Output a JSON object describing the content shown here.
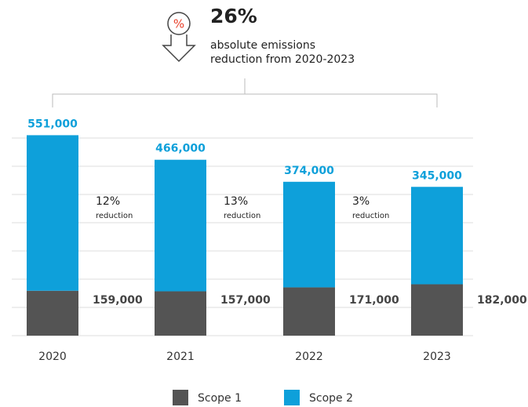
{
  "chart_data": {
    "type": "stacked_bar",
    "headline": "26%",
    "subtitle_lines": [
      "absolute emissions",
      "reduction from 2020-2023"
    ],
    "categories": [
      "2020",
      "2021",
      "2022",
      "2023"
    ],
    "series": [
      {
        "name": "Scope 1",
        "color": "#545454",
        "values": [
          159000,
          157000,
          171000,
          182000
        ],
        "value_labels": [
          "159,000",
          "157,000",
          "171,000",
          "182,000"
        ]
      },
      {
        "name": "Scope 2",
        "color": "#0ea0da",
        "values": [
          551000,
          466000,
          374000,
          345000
        ],
        "value_labels": [
          "551,000",
          "466,000",
          "374,000",
          "345,000"
        ]
      }
    ],
    "annotations": [
      {
        "label": "12%",
        "note": "reduction"
      },
      {
        "label": "13%",
        "note": "reduction"
      },
      {
        "label": "3%",
        "note": "reduction"
      }
    ],
    "ylim": [
      0,
      700000
    ],
    "yticks": [
      0,
      100000,
      200000,
      300000,
      400000,
      500000,
      600000,
      700000
    ],
    "grid": true,
    "legend": "bottom"
  }
}
